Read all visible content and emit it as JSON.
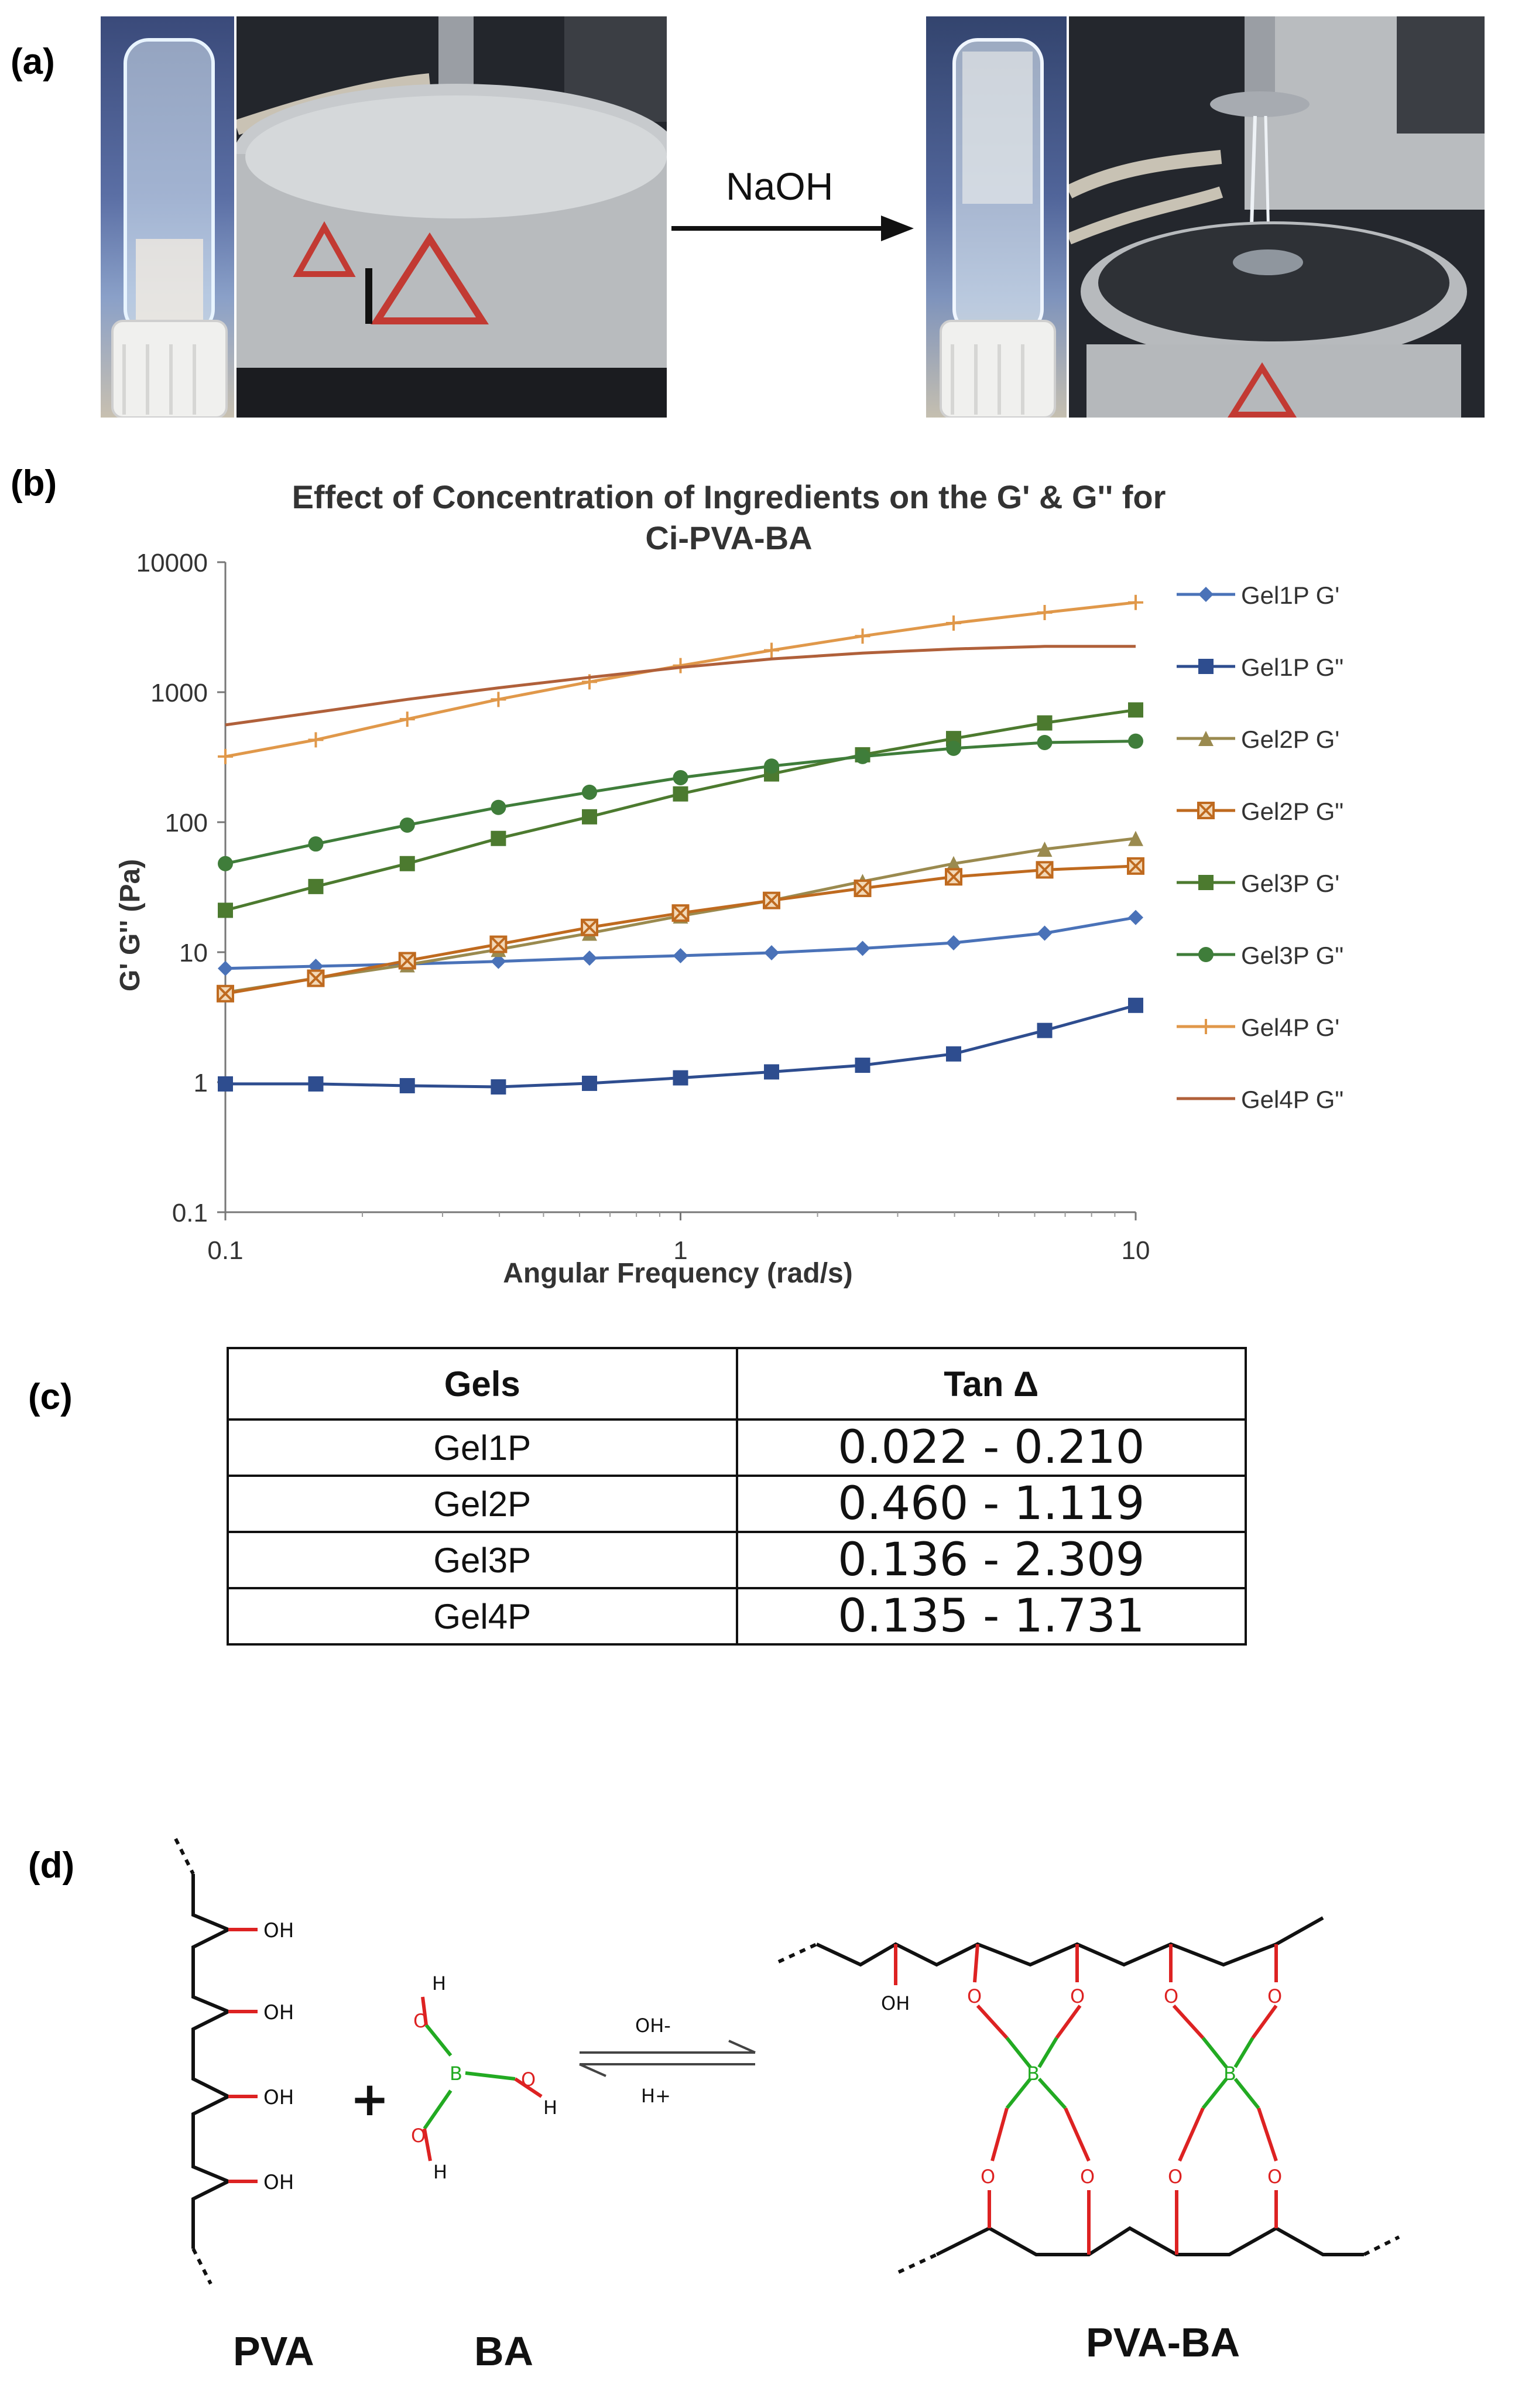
{
  "panels": {
    "a": "(a)",
    "b": "(b)",
    "c": "(c)",
    "d": "(d)"
  },
  "reaction_label": "NaOH",
  "chart_data": {
    "type": "line",
    "title": "Effect of Concentration of Ingredients on the G' & G'' for Ci-PVA-BA",
    "title_lines": [
      "Effect of Concentration of Ingredients on the G' & G'' for",
      "Ci-PVA-BA"
    ],
    "xlabel": "Angular Frequency (rad/s)",
    "ylabel": "G' G'' (Pa)",
    "x_scale": "log",
    "y_scale": "log",
    "xlim": [
      0.1,
      10
    ],
    "ylim": [
      0.1,
      10000
    ],
    "x_ticks": [
      "0.1",
      "1",
      "10"
    ],
    "y_ticks": [
      "0.1",
      "1",
      "10",
      "100",
      "1000",
      "10000"
    ],
    "legend_position": "right",
    "x": [
      0.1,
      0.158,
      0.251,
      0.398,
      0.631,
      1.0,
      1.585,
      2.512,
      3.981,
      6.31,
      10.0
    ],
    "series": [
      {
        "name": "Gel1P G'",
        "color": "#4a72b8",
        "marker": "diamond",
        "values": [
          7.5,
          7.8,
          8.1,
          8.5,
          9.0,
          9.4,
          9.9,
          10.7,
          11.8,
          14.0,
          18.5
        ]
      },
      {
        "name": "Gel1P G\"",
        "color": "#2e4d8f",
        "marker": "square",
        "values": [
          0.97,
          0.97,
          0.94,
          0.92,
          0.98,
          1.08,
          1.2,
          1.35,
          1.65,
          2.5,
          3.9
        ]
      },
      {
        "name": "Gel2P G'",
        "color": "#9a8a4f",
        "marker": "triangle",
        "values": [
          4.9,
          6.3,
          8.0,
          10.5,
          14.0,
          19.0,
          25.0,
          35.0,
          48.0,
          62.0,
          75.0
        ]
      },
      {
        "name": "Gel2P G\"",
        "color": "#bf6a1f",
        "marker": "xsquare",
        "values": [
          4.8,
          6.3,
          8.6,
          11.5,
          15.5,
          20.0,
          25.0,
          31.0,
          38.0,
          43.0,
          46.0
        ]
      },
      {
        "name": "Gel3P G'",
        "color": "#4c7a2f",
        "marker": "square",
        "values": [
          21,
          32,
          48,
          75,
          110,
          165,
          235,
          330,
          440,
          580,
          730
        ]
      },
      {
        "name": "Gel3P G\"",
        "color": "#3f7d3a",
        "marker": "circle",
        "values": [
          48,
          68,
          95,
          130,
          170,
          220,
          270,
          320,
          370,
          410,
          420
        ]
      },
      {
        "name": "Gel4P G'",
        "color": "#e0984a",
        "marker": "plus",
        "values": [
          320,
          430,
          620,
          880,
          1200,
          1600,
          2100,
          2700,
          3400,
          4100,
          4900
        ]
      },
      {
        "name": "Gel4P G\"",
        "color": "#b0603a",
        "marker": "none",
        "values": [
          560,
          700,
          880,
          1080,
          1300,
          1550,
          1800,
          2000,
          2150,
          2250,
          2250
        ]
      }
    ]
  },
  "table": {
    "headers": [
      "Gels",
      "Tan Δ"
    ],
    "rows": [
      {
        "gel": "Gel1P",
        "range": "0.022 - 0.210"
      },
      {
        "gel": "Gel2P",
        "range": "0.460 - 1.119"
      },
      {
        "gel": "Gel3P",
        "range": "0.136 - 2.309"
      },
      {
        "gel": "Gel4P",
        "range": "0.135 - 1.731"
      }
    ]
  },
  "scheme": {
    "pva_label": "PVA",
    "ba_label": "BA",
    "product_label": "PVA-BA",
    "forward_condition": "OH-",
    "reverse_condition": "H+",
    "oh": "OH",
    "o": "O",
    "h": "H",
    "b": "B",
    "plus": "+"
  }
}
